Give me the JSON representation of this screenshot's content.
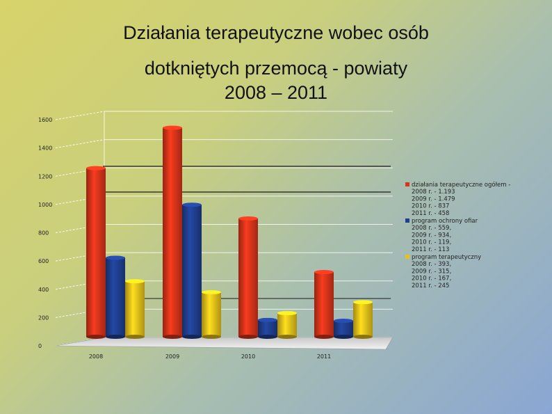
{
  "title": {
    "line1": "Działania terapeutyczne wobec osób",
    "line2": "dotkniętych przemocą - powiaty",
    "line3": "2008 – 2011"
  },
  "chart_data": {
    "type": "bar",
    "categories": [
      "2008",
      "2009",
      "2010",
      "2011"
    ],
    "ylim": [
      0,
      1600
    ],
    "yticks": [
      "0",
      "200",
      "400",
      "600",
      "800",
      "1000",
      "1200",
      "1400",
      "1600"
    ],
    "grid": true,
    "legend_position": "right",
    "series": [
      {
        "values": [
          1193,
          1479,
          837,
          458
        ],
        "color": "#d8341a"
      },
      {
        "values": [
          559,
          934,
          119,
          113
        ],
        "color": "#1f3f8f"
      },
      {
        "values": [
          393,
          315,
          167,
          245
        ],
        "color": "#e8c21a"
      }
    ],
    "legend": [
      {
        "color": "#d8341a",
        "lines": [
          "działania terapeutyczne ogółem -",
          "2008 r. - 1.193",
          "2009 r. - 1.479",
          "2010 r. - 837",
          "2011 r. - 458"
        ]
      },
      {
        "color": "#1f3f8f",
        "lines": [
          "program ochrony ofiar",
          "2008 r. - 559,",
          "2009 r. - 934,",
          "2010 r. - 119,",
          "2011 r. - 113"
        ]
      },
      {
        "color": "#e8c21a",
        "lines": [
          "program terapeutyczny",
          "2008 r. - 393,",
          "2009 r. - 315,",
          "2010 r. - 167,",
          "2011 r. - 245"
        ]
      }
    ]
  }
}
